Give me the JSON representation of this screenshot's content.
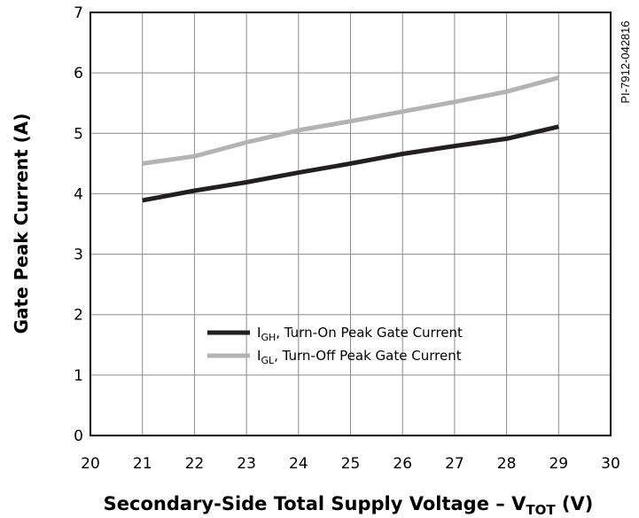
{
  "side_code": "PI-7912-042816",
  "chart_data": {
    "type": "line",
    "xlabel": {
      "main": "Secondary-Side Total Supply Voltage – V",
      "sub": "TOT",
      "suffix": " (V)"
    },
    "ylabel": "Gate Peak Current (A)",
    "xlim": [
      20,
      30
    ],
    "ylim": [
      0,
      7
    ],
    "xticks": [
      "20",
      "21",
      "22",
      "23",
      "24",
      "25",
      "26",
      "27",
      "28",
      "29",
      "30"
    ],
    "yticks": [
      "0",
      "1",
      "2",
      "3",
      "4",
      "5",
      "6",
      "7"
    ],
    "grid": true,
    "legend_position": "lower-center",
    "series": [
      {
        "name": "Turn-On Peak Gate Current",
        "label_main": "I",
        "label_sub": "GH",
        "label_suffix": ", Turn-On Peak Gate Current",
        "color": "#231f20",
        "x": [
          21,
          22,
          23,
          24,
          25,
          26,
          27,
          28,
          29
        ],
        "values": [
          3.89,
          4.05,
          4.19,
          4.35,
          4.5,
          4.66,
          4.79,
          4.91,
          5.11
        ]
      },
      {
        "name": "Turn-Off Peak Gate Current",
        "label_main": "I",
        "label_sub": "GL",
        "label_suffix": ", Turn-Off Peak Gate Current",
        "color": "#b3b3b3",
        "x": [
          21,
          22,
          23,
          24,
          25,
          26,
          27,
          28,
          29
        ],
        "values": [
          4.5,
          4.62,
          4.85,
          5.05,
          5.2,
          5.36,
          5.52,
          5.69,
          5.92
        ]
      }
    ]
  }
}
